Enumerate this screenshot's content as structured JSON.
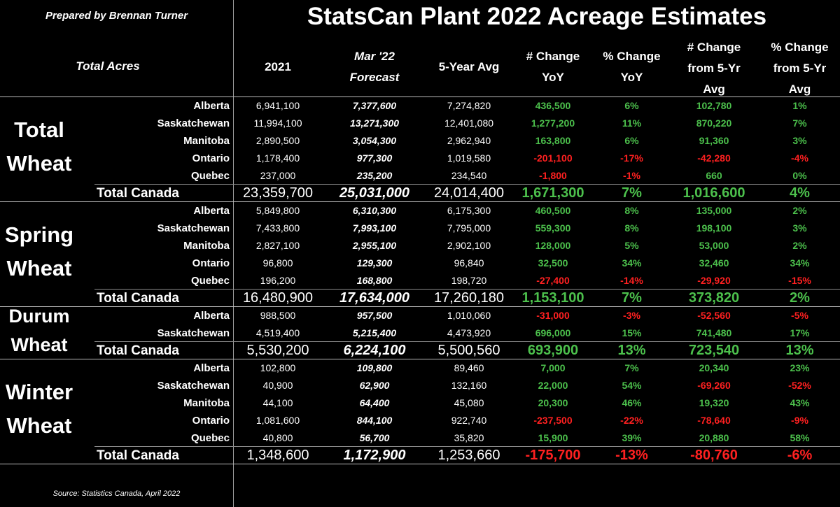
{
  "prepared_by": "Prepared by Brennan Turner",
  "title": "StatsCan Plant 2022 Acreage Estimates",
  "source": "Source: Statistics Canada, April 2022",
  "colors": {
    "background": "#000000",
    "positive": "#4cc04c",
    "negative": "#ff2020",
    "text": "#ffffff"
  },
  "chart_data": {
    "type": "table",
    "title": "StatsCan Plant 2022 Acreage Estimates",
    "row_header": "Total Acres",
    "columns": [
      {
        "key": "y2021",
        "lines": [
          "2021"
        ],
        "italic": false
      },
      {
        "key": "forecast",
        "lines": [
          "Mar '22",
          "Forecast"
        ],
        "italic": true
      },
      {
        "key": "avg5",
        "lines": [
          "5-Year Avg"
        ],
        "italic": false
      },
      {
        "key": "chg_yoy",
        "lines": [
          "# Change",
          "YoY"
        ],
        "italic": false
      },
      {
        "key": "pct_yoy",
        "lines": [
          "% Change",
          "YoY"
        ],
        "italic": false
      },
      {
        "key": "chg_5yr",
        "lines": [
          "# Change",
          "from 5-Yr",
          "Avg"
        ],
        "italic": false
      },
      {
        "key": "pct_5yr",
        "lines": [
          "% Change",
          "from 5-Yr",
          "Avg"
        ],
        "italic": false
      }
    ],
    "groups": [
      {
        "name_lines": [
          "Total",
          "Wheat"
        ],
        "rows": [
          {
            "label": "Alberta",
            "values": [
              "6,941,100",
              "7,377,600",
              "7,274,820",
              "436,500",
              "6%",
              "102,780",
              "1%"
            ]
          },
          {
            "label": "Saskatchewan",
            "values": [
              "11,994,100",
              "13,271,300",
              "12,401,080",
              "1,277,200",
              "11%",
              "870,220",
              "7%"
            ]
          },
          {
            "label": "Manitoba",
            "values": [
              "2,890,500",
              "3,054,300",
              "2,962,940",
              "163,800",
              "6%",
              "91,360",
              "3%"
            ]
          },
          {
            "label": "Ontario",
            "values": [
              "1,178,400",
              "977,300",
              "1,019,580",
              "-201,100",
              "-17%",
              "-42,280",
              "-4%"
            ]
          },
          {
            "label": "Quebec",
            "values": [
              "237,000",
              "235,200",
              "234,540",
              "-1,800",
              "-1%",
              "660",
              "0%"
            ]
          }
        ],
        "total": {
          "label": "Total Canada",
          "values": [
            "23,359,700",
            "25,031,000",
            "24,014,400",
            "1,671,300",
            "7%",
            "1,016,600",
            "4%"
          ]
        }
      },
      {
        "name_lines": [
          "Spring",
          "Wheat"
        ],
        "rows": [
          {
            "label": "Alberta",
            "values": [
              "5,849,800",
              "6,310,300",
              "6,175,300",
              "460,500",
              "8%",
              "135,000",
              "2%"
            ]
          },
          {
            "label": "Saskatchewan",
            "values": [
              "7,433,800",
              "7,993,100",
              "7,795,000",
              "559,300",
              "8%",
              "198,100",
              "3%"
            ]
          },
          {
            "label": "Manitoba",
            "values": [
              "2,827,100",
              "2,955,100",
              "2,902,100",
              "128,000",
              "5%",
              "53,000",
              "2%"
            ]
          },
          {
            "label": "Ontario",
            "values": [
              "96,800",
              "129,300",
              "96,840",
              "32,500",
              "34%",
              "32,460",
              "34%"
            ]
          },
          {
            "label": "Quebec",
            "values": [
              "196,200",
              "168,800",
              "198,720",
              "-27,400",
              "-14%",
              "-29,920",
              "-15%"
            ]
          }
        ],
        "total": {
          "label": "Total Canada",
          "values": [
            "16,480,900",
            "17,634,000",
            "17,260,180",
            "1,153,100",
            "7%",
            "373,820",
            "2%"
          ]
        }
      },
      {
        "name_lines": [
          "Durum",
          "Wheat"
        ],
        "rows": [
          {
            "label": "Alberta",
            "values": [
              "988,500",
              "957,500",
              "1,010,060",
              "-31,000",
              "-3%",
              "-52,560",
              "-5%"
            ]
          },
          {
            "label": "Saskatchewan",
            "values": [
              "4,519,400",
              "5,215,400",
              "4,473,920",
              "696,000",
              "15%",
              "741,480",
              "17%"
            ]
          }
        ],
        "total": {
          "label": "Total Canada",
          "values": [
            "5,530,200",
            "6,224,100",
            "5,500,560",
            "693,900",
            "13%",
            "723,540",
            "13%"
          ]
        }
      },
      {
        "name_lines": [
          "Winter",
          "Wheat"
        ],
        "rows": [
          {
            "label": "Alberta",
            "values": [
              "102,800",
              "109,800",
              "89,460",
              "7,000",
              "7%",
              "20,340",
              "23%"
            ]
          },
          {
            "label": "Saskatchewan",
            "values": [
              "40,900",
              "62,900",
              "132,160",
              "22,000",
              "54%",
              "-69,260",
              "-52%"
            ]
          },
          {
            "label": "Manitoba",
            "values": [
              "44,100",
              "64,400",
              "45,080",
              "20,300",
              "46%",
              "19,320",
              "43%"
            ]
          },
          {
            "label": "Ontario",
            "values": [
              "1,081,600",
              "844,100",
              "922,740",
              "-237,500",
              "-22%",
              "-78,640",
              "-9%"
            ]
          },
          {
            "label": "Quebec",
            "values": [
              "40,800",
              "56,700",
              "35,820",
              "15,900",
              "39%",
              "20,880",
              "58%"
            ]
          }
        ],
        "total": {
          "label": "Total Canada",
          "values": [
            "1,348,600",
            "1,172,900",
            "1,253,660",
            "-175,700",
            "-13%",
            "-80,760",
            "-6%"
          ]
        }
      }
    ]
  }
}
